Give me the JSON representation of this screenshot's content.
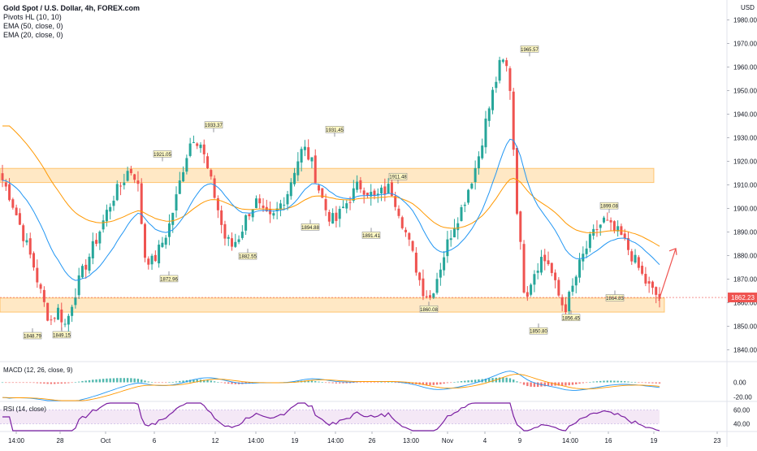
{
  "header": {
    "symbol": "Gold Spot / U.S. Dollar, 4h, FOREX.com",
    "indicators": [
      "Pivots HL (10, 10)",
      "EMA (50, close, 0)",
      "EMA (20, close, 0)"
    ],
    "currency": "USD"
  },
  "colors": {
    "up": "#26a69a",
    "down": "#ef5350",
    "ema20": "#2196f3",
    "ema50": "#ff9800",
    "zone_fill": "#ffe0b2",
    "zone_stroke": "#ff9800",
    "pivot_fill": "#fff9c4",
    "rsi_line": "#7b1fa2",
    "rsi_band": "#f3e5f5",
    "arrow": "#ef5350",
    "last_price_bg": "#ef5350"
  },
  "price_axis": {
    "min": 1835,
    "max": 1985,
    "ticks": [
      "1980.00",
      "1970.00",
      "1960.00",
      "1950.00",
      "1940.00",
      "1930.00",
      "1920.00",
      "1910.00",
      "1900.00",
      "1890.00",
      "1880.00",
      "1870.00",
      "1860.00",
      "1850.00",
      "1840.00"
    ],
    "last_price": "1862.23"
  },
  "time_axis": {
    "labels": [
      "14:00",
      "28",
      "Oct",
      "6",
      "12",
      "14:00",
      "19",
      "14:00",
      "26",
      "13:00",
      "Nov",
      "4",
      "9",
      "14:00",
      "16",
      "19",
      "23"
    ]
  },
  "zones": [
    {
      "name": "resistance-zone",
      "top": 1917,
      "bottom": 1911
    },
    {
      "name": "support-zone",
      "top": 1862,
      "bottom": 1856
    }
  ],
  "pivots": [
    {
      "label": "1921.05",
      "value": 1921.05,
      "type": "high"
    },
    {
      "label": "1933.37",
      "value": 1933.37,
      "type": "high"
    },
    {
      "label": "1931.45",
      "value": 1931.45,
      "type": "high"
    },
    {
      "label": "1911.48",
      "value": 1911.48,
      "type": "high"
    },
    {
      "label": "1965.57",
      "value": 1965.57,
      "type": "high"
    },
    {
      "label": "1899.08",
      "value": 1899.08,
      "type": "high"
    },
    {
      "label": "1848.79",
      "value": 1848.79,
      "type": "low"
    },
    {
      "label": "1849.15",
      "value": 1849.15,
      "type": "low"
    },
    {
      "label": "1872.96",
      "value": 1872.96,
      "type": "low"
    },
    {
      "label": "1882.55",
      "value": 1882.55,
      "type": "low"
    },
    {
      "label": "1894.88",
      "value": 1894.88,
      "type": "low"
    },
    {
      "label": "1891.41",
      "value": 1891.41,
      "type": "low"
    },
    {
      "label": "1860.08",
      "value": 1860.08,
      "type": "low"
    },
    {
      "label": "1850.80",
      "value": 1850.8,
      "type": "low"
    },
    {
      "label": "1856.45",
      "value": 1856.45,
      "type": "low"
    },
    {
      "label": "1864.83",
      "value": 1864.83,
      "type": "low"
    }
  ],
  "macd": {
    "label": "MACD (12, 26, close, 9)",
    "min": -25,
    "max": 25,
    "ticks": [
      "0.00",
      "-20.00"
    ]
  },
  "rsi": {
    "label": "RSI (14, close)",
    "min": 30,
    "max": 70,
    "ticks": [
      "60.00",
      "40.00"
    ],
    "band": [
      40,
      60
    ]
  },
  "chart_data": {
    "type": "candlestick",
    "title": "Gold Spot / U.S. Dollar, 4h, FOREX.com",
    "ylim": [
      1835,
      1985
    ],
    "x_labels": [
      "14:00",
      "28",
      "Oct",
      "6",
      "12",
      "14:00",
      "19",
      "14:00",
      "26",
      "13:00",
      "Nov",
      "4",
      "9",
      "14:00",
      "16",
      "19",
      "23"
    ],
    "series": [
      {
        "name": "EMA (20, close, 0)"
      },
      {
        "name": "EMA (50, close, 0)"
      }
    ],
    "close_path": [
      1912,
      1905,
      1895,
      1885,
      1875,
      1862,
      1852,
      1857,
      1850,
      1863,
      1872,
      1880,
      1888,
      1897,
      1905,
      1910,
      1917,
      1913,
      1880,
      1877,
      1884,
      1892,
      1905,
      1920,
      1931,
      1928,
      1915,
      1903,
      1888,
      1884,
      1889,
      1898,
      1903,
      1897,
      1895,
      1901,
      1907,
      1918,
      1926,
      1920,
      1908,
      1898,
      1894,
      1900,
      1905,
      1910,
      1908,
      1904,
      1907,
      1909,
      1900,
      1889,
      1878,
      1866,
      1862,
      1872,
      1883,
      1893,
      1900,
      1910,
      1920,
      1936,
      1950,
      1963,
      1958,
      1900,
      1862,
      1872,
      1879,
      1877,
      1865,
      1857,
      1866,
      1877,
      1885,
      1891,
      1895,
      1891,
      1889,
      1883,
      1877,
      1870,
      1865,
      1862
    ]
  }
}
